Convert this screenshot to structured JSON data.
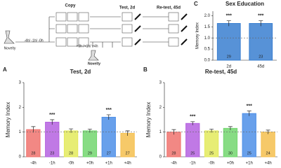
{
  "diagram": {
    "novelty_left": "Novelty",
    "pre_times": "-4h/ -1h/ -0h",
    "copy": "Copy",
    "post_times": "+0h /+1h/ +4h",
    "novelty_mid": "Novelty",
    "test": "Test, 2d",
    "retest": "Re-test, 45d"
  },
  "chart_data": [
    {
      "type": "bar",
      "panel": "C",
      "title": "Sex Education",
      "y_label": "Memory Index",
      "categories": [
        "2d",
        "45d"
      ],
      "values": [
        1.65,
        1.65
      ],
      "errors": [
        0.12,
        0.12
      ],
      "n": [
        29,
        23
      ],
      "significance": [
        "***",
        "***"
      ],
      "colors": [
        "#3a7fd0",
        "#3a7fd0"
      ],
      "hline": 1,
      "ylim": [
        0,
        2.2
      ],
      "yticks": [
        {
          "value": 0,
          "label": "0.0"
        },
        {
          "value": 0.5,
          "label": "0.5"
        },
        {
          "value": 1,
          "label": "1.0"
        },
        {
          "value": 1.5,
          "label": "1.5"
        },
        {
          "value": 2,
          "label": "2.0"
        }
      ]
    },
    {
      "type": "bar",
      "panel": "A",
      "title": "Test, 2d",
      "y_label": "Memory Index",
      "categories": [
        "-4h",
        "-1h",
        "-0h",
        "+0h",
        "+1h",
        "+4h"
      ],
      "values": [
        1.1,
        1.4,
        1.05,
        1.05,
        1.6,
        0.95
      ],
      "errors": [
        0.12,
        0.1,
        0.08,
        0.07,
        0.1,
        0.1
      ],
      "n": [
        28,
        23,
        28,
        29,
        27,
        27
      ],
      "significance": [
        null,
        "***",
        null,
        null,
        "***",
        null
      ],
      "colors": [
        "#f0736e",
        "#b562e0",
        "#e3ea5c",
        "#72d66e",
        "#4d8fe8",
        "#f5c04f"
      ],
      "hline": 1,
      "ylim": [
        0,
        3
      ],
      "yticks": [
        0,
        1,
        2,
        3
      ]
    },
    {
      "type": "bar",
      "panel": "B",
      "title": "Re-test, 45d",
      "y_label": "Memory Index",
      "categories": [
        "-4h",
        "-1h",
        "-0h",
        "+0h",
        "+1h",
        "+4h"
      ],
      "values": [
        1.0,
        1.35,
        1.05,
        1.15,
        1.75,
        1.0
      ],
      "errors": [
        0.1,
        0.07,
        0.07,
        0.07,
        0.1,
        0.08
      ],
      "n": [
        28,
        25,
        25,
        30,
        25,
        24
      ],
      "significance": [
        null,
        "***",
        null,
        null,
        "***",
        null
      ],
      "colors": [
        "#f0736e",
        "#b562e0",
        "#e3ea5c",
        "#72d66e",
        "#4d8fe8",
        "#f5c04f"
      ],
      "hline": 1,
      "ylim": [
        0,
        3
      ],
      "yticks": [
        0,
        1,
        2,
        3
      ]
    }
  ]
}
